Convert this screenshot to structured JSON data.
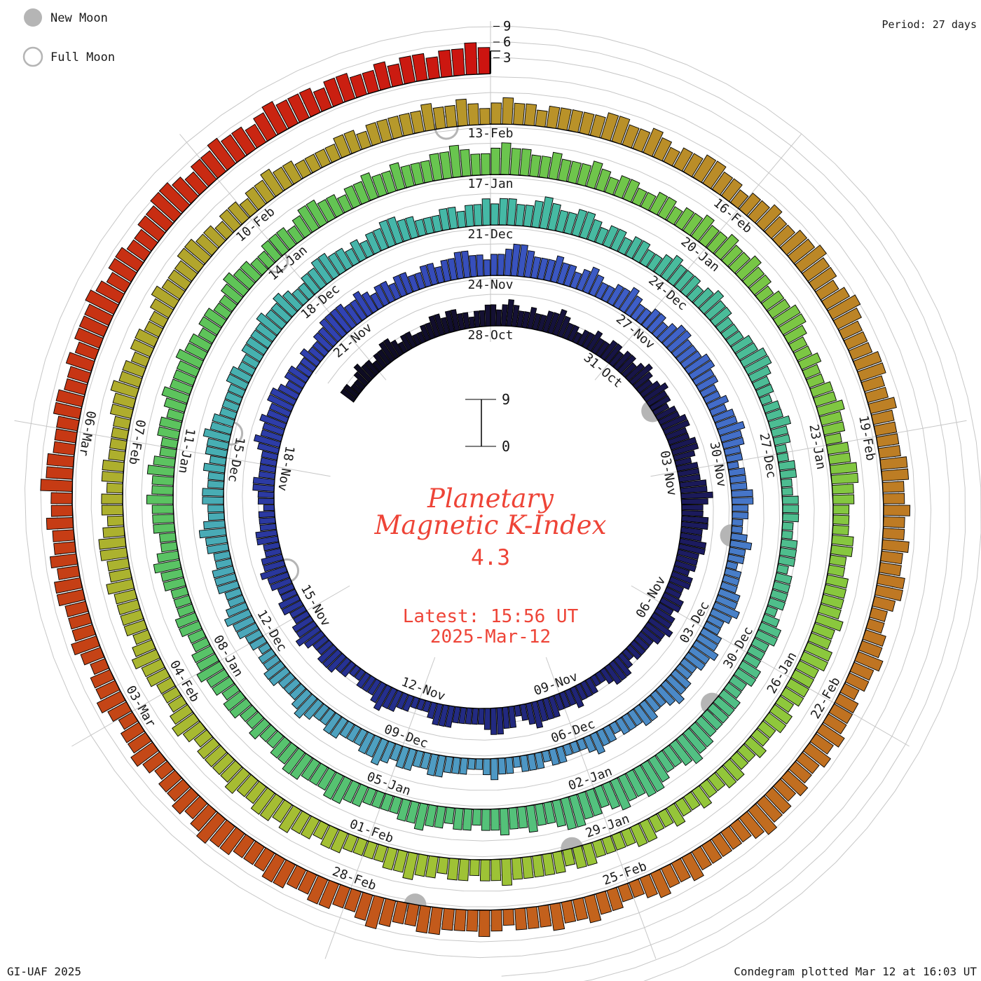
{
  "header": {
    "period_label": "Period: 27 days"
  },
  "legend": {
    "new_moon": "New Moon",
    "full_moon": "Full Moon"
  },
  "footer": {
    "left": "GI-UAF 2025",
    "right": "Condegram plotted Mar 12 at 16:03 UT"
  },
  "center": {
    "title_line1": "Planetary",
    "title_line2": "Magnetic K-Index",
    "current_value": "4.3",
    "latest_line1": "Latest: 15:56 UT",
    "latest_line2": "2025-Mar-12"
  },
  "chart_data": {
    "type": "bar",
    "kind": "spiral-polar-bar-condegram",
    "title": "Planetary Magnetic K-Index",
    "period_days": 27,
    "hours_per_bar": 3,
    "k_scale": {
      "min": 0,
      "max": 9,
      "outer_ticks": [
        "3",
        "6",
        "9"
      ],
      "inner_max": "9",
      "inner_min": "0"
    },
    "start_date": "2024-10-24",
    "top_reference_date": "2024-10-28",
    "end_date": "2025-03-12",
    "ring_date_labels": [
      "28-Oct",
      "31-Oct",
      "03-Nov",
      "06-Nov",
      "09-Nov",
      "12-Nov",
      "15-Nov",
      "18-Nov",
      "21-Nov",
      "24-Nov",
      "27-Nov",
      "30-Nov",
      "03-Dec",
      "06-Dec",
      "09-Dec",
      "12-Dec",
      "15-Dec",
      "18-Dec",
      "21-Dec",
      "24-Dec",
      "27-Dec",
      "30-Dec",
      "02-Jan",
      "05-Jan",
      "08-Jan",
      "11-Jan",
      "14-Jan",
      "17-Jan",
      "20-Jan",
      "23-Jan",
      "26-Jan",
      "29-Jan",
      "01-Feb",
      "04-Feb",
      "07-Feb",
      "10-Feb",
      "13-Feb",
      "16-Feb",
      "19-Feb",
      "22-Feb",
      "25-Feb",
      "28-Feb",
      "03-Mar",
      "06-Mar"
    ],
    "kp_by_day": [
      "33223433",
      "23344323",
      "32233443",
      "44332334",
      "43454334",
      "33445433",
      "23343344",
      "34434543",
      "45443445",
      "54455434",
      "44556544",
      "55445544",
      "43443344",
      "34454433",
      "33234443",
      "22333433",
      "34445432",
      "44554333",
      "33444322",
      "23344543",
      "33223344",
      "43345443",
      "34433445",
      "44334433",
      "32334433",
      "33454454",
      "45543443",
      "34334455",
      "55445434",
      "43443344",
      "34455443",
      "44566544",
      "45443454",
      "33445433",
      "44345544",
      "45544334",
      "34454433",
      "23334433",
      "22343323",
      "33445433",
      "44544334",
      "45433443",
      "33233432",
      "22332333",
      "23343223",
      "33443344",
      "34544333",
      "44334543",
      "33443323",
      "34454334",
      "44334454",
      "33443343",
      "44544333",
      "34433444",
      "45445433",
      "44554434",
      "34455443",
      "33443445",
      "45544565",
      "44554344",
      "34433454",
      "44345443",
      "33445543",
      "32334332",
      "23322333",
      "22333233",
      "33234433",
      "34433444",
      "44556544",
      "56655654",
      "55665445",
      "44544344",
      "34454433",
      "33445544",
      "45544334",
      "33443445",
      "44334433",
      "34454334",
      "44544543",
      "34434544",
      "45443443",
      "34544334",
      "44345544",
      "34454454",
      "44556544",
      "56554454",
      "44543443",
      "34434454",
      "45445443",
      "44554334",
      "33445443",
      "44554433",
      "34433444",
      "45445544",
      "44344334",
      "33443343",
      "34334433",
      "33443444",
      "44544344",
      "34454433",
      "33443445",
      "45544544",
      "44345433",
      "34454344",
      "44544554",
      "34434433",
      "33445443",
      "44334544",
      "45544344",
      "34454433",
      "33443444",
      "44544543",
      "45443444",
      "44554454",
      "34455443",
      "44544556",
      "55456544",
      "45544544",
      "44554454",
      "45445543",
      "34454434",
      "44545445",
      "45565444",
      "44544543",
      "34454454",
      "44345444",
      "55445654",
      "45544554",
      "44556545",
      "44345443",
      "45443454",
      "44554544",
      "54465544",
      "45544545",
      "55654554",
      "45566545",
      "56554565",
      "55455445",
      "45545565"
    ],
    "moons": [
      {
        "phase": "new",
        "date": "2024-11-01",
        "d": 4.5
      },
      {
        "phase": "new",
        "date": "2024-12-01",
        "d": 34.3
      },
      {
        "phase": "new",
        "date": "2024-12-30",
        "d": 63.9
      },
      {
        "phase": "new",
        "date": "2025-01-29",
        "d": 93.5
      },
      {
        "phase": "new",
        "date": "2025-02-27",
        "d": 122.3
      },
      {
        "phase": "full",
        "date": "2024-11-15",
        "d": 18.9
      },
      {
        "phase": "full",
        "date": "2024-12-15",
        "d": 48.4
      },
      {
        "phase": "full",
        "date": "2025-01-13",
        "d": 77.9
      },
      {
        "phase": "full",
        "date": "2025-02-12",
        "d": 107.5
      }
    ],
    "colors": {
      "accent_red": "#ee4437",
      "grid": "#c7c7c7",
      "moon_gray": "#b5b5b5",
      "bar_outline": "#000000",
      "label_text": "#1a1a1a",
      "colormap": [
        [
          -4,
          "#0d0b20"
        ],
        [
          0,
          "#141033"
        ],
        [
          8,
          "#1c1c63"
        ],
        [
          16,
          "#25308f"
        ],
        [
          24,
          "#3142b2"
        ],
        [
          30,
          "#3f60c8"
        ],
        [
          36,
          "#4a84c8"
        ],
        [
          42,
          "#4f9fc2"
        ],
        [
          48,
          "#47aeb3"
        ],
        [
          54,
          "#45b9a6"
        ],
        [
          60,
          "#4dbd92"
        ],
        [
          66,
          "#53c17e"
        ],
        [
          72,
          "#58c369"
        ],
        [
          78,
          "#60c455"
        ],
        [
          84,
          "#75c647"
        ],
        [
          90,
          "#8dc83c"
        ],
        [
          96,
          "#a3c134"
        ],
        [
          102,
          "#aeae2d"
        ],
        [
          108,
          "#b8952a"
        ],
        [
          114,
          "#bd7f25"
        ],
        [
          120,
          "#c3651d"
        ],
        [
          126,
          "#c44616"
        ],
        [
          132,
          "#c92a12"
        ],
        [
          135,
          "#cc1410"
        ]
      ]
    },
    "layout_hints": {
      "grid": true,
      "legend_position": "top-left",
      "rings": 5,
      "labels_per_ring": 9
    }
  }
}
